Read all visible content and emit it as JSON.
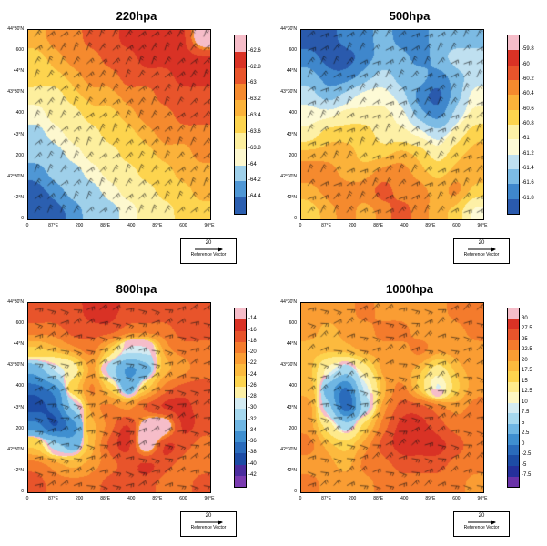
{
  "figure": {
    "background": "#ffffff",
    "reference_vector_value": "20",
    "reference_vector_label": "Reference Vector"
  },
  "chart_data": [
    {
      "type": "heatmap",
      "title": "220hpa",
      "colorbar_labels": [
        "-62.6",
        "-62.8",
        "-63",
        "-63.2",
        "-63.4",
        "-63.6",
        "-63.8",
        "-64",
        "-64.2",
        "-64.4"
      ],
      "colorbar_colors": [
        "#f6bdc9",
        "#d93225",
        "#e8542b",
        "#f58a2e",
        "#fbb23a",
        "#fdd44e",
        "#fdef9e",
        "#fdf8cf",
        "#9fd0ea",
        "#4f97d5",
        "#2b5fb0"
      ],
      "y_tick_labels": [
        "44°30'N",
        "600",
        "44°N",
        "43°30'N",
        "400",
        "43°N",
        "200",
        "42°30'N",
        "42°N",
        "0"
      ],
      "x_tick_labels": [
        "0",
        "87°E",
        "200",
        "88°E",
        "400",
        "89°E",
        "600",
        "90°E"
      ],
      "reference_vector": {
        "value": "20",
        "label": "Reference Vector"
      },
      "wind_barbs": {
        "base_angle_deg": -55,
        "jitter_deg": 18
      },
      "grid_values": [
        [
          4,
          3,
          3,
          2,
          2,
          1,
          1,
          1,
          1,
          0
        ],
        [
          5,
          4,
          3,
          3,
          2,
          2,
          1,
          1,
          1,
          1
        ],
        [
          5,
          5,
          4,
          3,
          3,
          2,
          2,
          2,
          1,
          1
        ],
        [
          6,
          6,
          5,
          4,
          4,
          3,
          3,
          2,
          2,
          2
        ],
        [
          7,
          6,
          6,
          5,
          5,
          4,
          3,
          3,
          2,
          2
        ],
        [
          8,
          7,
          6,
          6,
          5,
          5,
          4,
          3,
          3,
          3
        ],
        [
          8,
          8,
          7,
          6,
          6,
          5,
          5,
          4,
          4,
          3
        ],
        [
          9,
          8,
          8,
          7,
          6,
          6,
          5,
          5,
          4,
          4
        ],
        [
          10,
          9,
          8,
          8,
          7,
          6,
          6,
          5,
          5,
          4
        ],
        [
          10,
          10,
          9,
          8,
          8,
          7,
          6,
          6,
          5,
          5
        ]
      ]
    },
    {
      "type": "heatmap",
      "title": "500hpa",
      "colorbar_labels": [
        "-59.8",
        "-60",
        "-60.2",
        "-60.4",
        "-60.6",
        "-60.8",
        "-61",
        "-61.2",
        "-61.4",
        "-61.6",
        "-61.8"
      ],
      "colorbar_colors": [
        "#f6bdc9",
        "#d93225",
        "#e8542b",
        "#f58a2e",
        "#fbb23a",
        "#fdd44e",
        "#fdf0a6",
        "#fdfad6",
        "#bfe0f0",
        "#7cbbe4",
        "#3f87cc",
        "#2a5aad"
      ],
      "y_tick_labels": [
        "44°30'N",
        "600",
        "44°N",
        "43°30'N",
        "400",
        "43°N",
        "200",
        "42°30'N",
        "42°N",
        "0"
      ],
      "x_tick_labels": [
        "0",
        "87°E",
        "200",
        "88°E",
        "400",
        "89°E",
        "600",
        "90°E"
      ],
      "reference_vector": {
        "value": "20",
        "label": "Reference Vector"
      },
      "wind_barbs": {
        "base_angle_deg": -45,
        "jitter_deg": 25
      },
      "grid_values": [
        [
          11,
          11,
          10,
          10,
          9,
          10,
          10,
          9,
          9,
          9
        ],
        [
          10,
          11,
          11,
          10,
          9,
          9,
          10,
          9,
          8,
          8
        ],
        [
          9,
          10,
          10,
          9,
          8,
          9,
          9,
          10,
          9,
          8
        ],
        [
          8,
          9,
          8,
          7,
          7,
          8,
          10,
          11,
          9,
          7
        ],
        [
          7,
          7,
          6,
          6,
          6,
          7,
          9,
          10,
          8,
          6
        ],
        [
          6,
          5,
          5,
          5,
          6,
          6,
          7,
          8,
          6,
          5
        ],
        [
          4,
          4,
          4,
          5,
          5,
          4,
          5,
          6,
          5,
          4
        ],
        [
          3,
          3,
          4,
          4,
          3,
          3,
          4,
          5,
          4,
          4
        ],
        [
          4,
          3,
          3,
          3,
          2,
          3,
          3,
          4,
          3,
          5
        ],
        [
          5,
          4,
          3,
          4,
          3,
          2,
          3,
          4,
          5,
          7
        ]
      ]
    },
    {
      "type": "heatmap",
      "title": "800hpa",
      "colorbar_labels": [
        "-14",
        "-16",
        "-18",
        "-20",
        "-22",
        "-24",
        "-26",
        "-28",
        "-30",
        "-32",
        "-34",
        "-36",
        "-38",
        "-40",
        "-42"
      ],
      "colorbar_colors": [
        "#f6bdc9",
        "#d93225",
        "#e8542b",
        "#f47b2c",
        "#fa9d33",
        "#fcba3e",
        "#fdd44e",
        "#fdf0a6",
        "#d4ebf2",
        "#a6d8ee",
        "#6fb6e3",
        "#3f8fd0",
        "#2a6bbb",
        "#1d4ca5",
        "#4b2d9e",
        "#7a3bb0"
      ],
      "y_tick_labels": [
        "44°30'N",
        "600",
        "44°N",
        "43°30'N",
        "400",
        "43°N",
        "200",
        "42°30'N",
        "42°N",
        "0"
      ],
      "x_tick_labels": [
        "0",
        "87°E",
        "200",
        "88°E",
        "400",
        "89°E",
        "600",
        "90°E"
      ],
      "reference_vector": {
        "value": "20",
        "label": "Reference Vector"
      },
      "wind_barbs": {
        "base_angle_deg": -10,
        "jitter_deg": 30
      },
      "grid_values": [
        [
          2,
          2,
          2,
          1,
          1,
          2,
          2,
          2,
          2,
          2
        ],
        [
          3,
          3,
          2,
          2,
          2,
          3,
          3,
          3,
          2,
          2
        ],
        [
          6,
          5,
          4,
          3,
          6,
          8,
          8,
          4,
          3,
          3
        ],
        [
          10,
          8,
          7,
          4,
          9,
          11,
          10,
          5,
          4,
          3
        ],
        [
          12,
          11,
          6,
          3,
          6,
          10,
          6,
          3,
          2,
          2
        ],
        [
          13,
          12,
          9,
          4,
          3,
          4,
          2,
          1,
          1,
          2
        ],
        [
          11,
          13,
          11,
          5,
          3,
          1,
          0,
          0,
          1,
          2
        ],
        [
          6,
          9,
          10,
          5,
          2,
          1,
          0,
          1,
          2,
          3
        ],
        [
          3,
          4,
          5,
          4,
          3,
          2,
          1,
          2,
          3,
          3
        ],
        [
          2,
          3,
          3,
          3,
          2,
          2,
          2,
          3,
          3,
          2
        ]
      ]
    },
    {
      "type": "heatmap",
      "title": "1000hpa",
      "colorbar_labels": [
        "30",
        "27.5",
        "25",
        "22.5",
        "20",
        "17.5",
        "15",
        "12.5",
        "10",
        "7.5",
        "5",
        "2.5",
        "0",
        "-2.5",
        "-5",
        "-7.5"
      ],
      "colorbar_colors": [
        "#f6bdc9",
        "#d93225",
        "#e8542b",
        "#f47b2c",
        "#fa9d33",
        "#fcba3e",
        "#fdd44e",
        "#feea8c",
        "#fdf6c3",
        "#d4ebf2",
        "#a6d8ee",
        "#6fb6e3",
        "#3f8fd0",
        "#2a6bbb",
        "#1d4ca5",
        "#25309b",
        "#6a33a8"
      ],
      "y_tick_labels": [
        "44°30'N",
        "600",
        "44°N",
        "43°30'N",
        "400",
        "43°N",
        "200",
        "42°30'N",
        "42°N",
        "0"
      ],
      "x_tick_labels": [
        "0",
        "87°E",
        "200",
        "88°E",
        "400",
        "89°E",
        "600",
        "90°E"
      ],
      "reference_vector": {
        "value": "20",
        "label": "Reference Vector"
      },
      "wind_barbs": {
        "base_angle_deg": -15,
        "jitter_deg": 35
      },
      "grid_values": [
        [
          4,
          4,
          4,
          3,
          4,
          4,
          4,
          4,
          3,
          3
        ],
        [
          4,
          5,
          4,
          4,
          3,
          3,
          4,
          4,
          4,
          3
        ],
        [
          5,
          5,
          5,
          4,
          4,
          4,
          3,
          4,
          4,
          4
        ],
        [
          5,
          8,
          10,
          7,
          4,
          4,
          5,
          7,
          5,
          4
        ],
        [
          5,
          11,
          13,
          9,
          5,
          3,
          6,
          9,
          6,
          4
        ],
        [
          4,
          10,
          14,
          10,
          4,
          2,
          2,
          3,
          4,
          3
        ],
        [
          4,
          7,
          10,
          6,
          3,
          1,
          1,
          2,
          3,
          3
        ],
        [
          3,
          5,
          6,
          4,
          2,
          1,
          1,
          1,
          2,
          3
        ],
        [
          4,
          4,
          5,
          3,
          3,
          2,
          2,
          2,
          3,
          3
        ],
        [
          3,
          4,
          4,
          4,
          3,
          3,
          3,
          3,
          3,
          4
        ]
      ]
    }
  ]
}
